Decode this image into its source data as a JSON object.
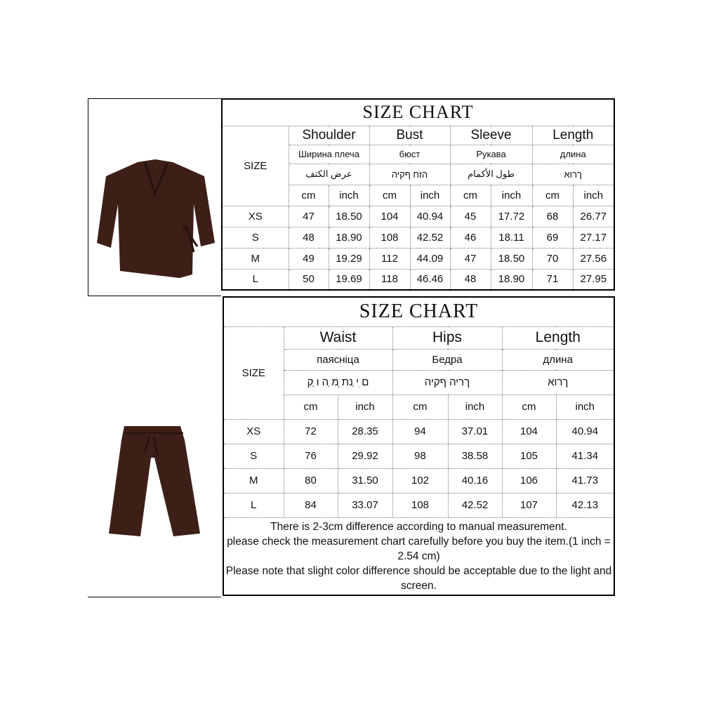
{
  "top": {
    "title": "SIZE CHART",
    "size_label": "SIZE",
    "columns": [
      {
        "en": "Shoulder",
        "ru": "Ширина плеча",
        "alt": "عرض الكتف"
      },
      {
        "en": "Bust",
        "ru": "бюст",
        "alt": "הזח ףקיה"
      },
      {
        "en": "Sleeve",
        "ru": "Рукава",
        "alt": "طول الأكمام"
      },
      {
        "en": "Length",
        "ru": "длина",
        "alt": "ךרוא"
      }
    ],
    "units": [
      "cm",
      "inch"
    ],
    "rows": [
      [
        "XS",
        "47",
        "18.50",
        "104",
        "40.94",
        "45",
        "17.72",
        "68",
        "26.77"
      ],
      [
        "S",
        "48",
        "18.90",
        "108",
        "42.52",
        "46",
        "18.11",
        "69",
        "27.17"
      ],
      [
        "M",
        "49",
        "19.29",
        "112",
        "44.09",
        "47",
        "18.50",
        "70",
        "27.56"
      ],
      [
        "L",
        "50",
        "19.69",
        "118",
        "46.46",
        "48",
        "18.90",
        "71",
        "27.95"
      ]
    ]
  },
  "bottom": {
    "title": "SIZE CHART",
    "size_label": "SIZE",
    "columns": [
      {
        "en": "Waist",
        "ru": "паясніца",
        "alt": "ם ִי ַנת ְמ ַה ו ַק"
      },
      {
        "en": "Hips",
        "ru": "Бедра",
        "alt": "ךריה ףקיה"
      },
      {
        "en": "Length",
        "ru": "длина",
        "alt": "ךרוא"
      }
    ],
    "units": [
      "cm",
      "inch"
    ],
    "rows": [
      [
        "XS",
        "72",
        "28.35",
        "94",
        "37.01",
        "104",
        "40.94"
      ],
      [
        "S",
        "76",
        "29.92",
        "98",
        "38.58",
        "105",
        "41.34"
      ],
      [
        "M",
        "80",
        "31.50",
        "102",
        "40.16",
        "106",
        "41.73"
      ],
      [
        "L",
        "84",
        "33.07",
        "108",
        "42.52",
        "107",
        "42.13"
      ]
    ],
    "notes": [
      "There is 2-3cm difference according to manual measurement.",
      "please check the measurement chart carefully before you buy the item.(1 inch = 2.54 cm)",
      "Please note that slight color difference should be acceptable due to the light and screen."
    ]
  },
  "colors": {
    "garment": "#3d1f17",
    "border": "#000000"
  }
}
